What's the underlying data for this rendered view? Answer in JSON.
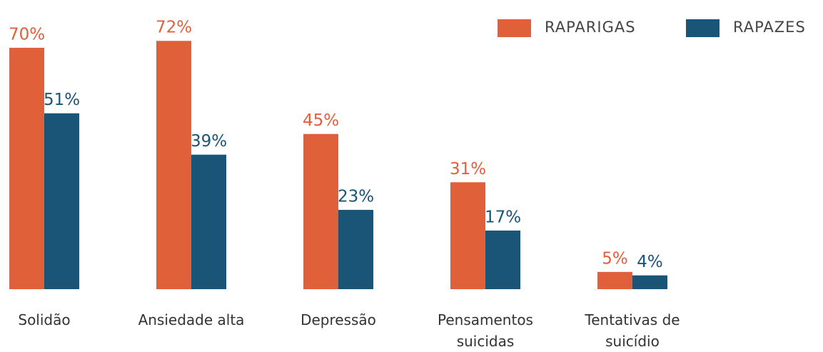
{
  "chart_data": {
    "type": "bar",
    "categories": [
      "Solidão",
      "Ansiedade alta",
      "Depressão",
      "Pensamentos suicidas",
      "Tentativas de suicídio"
    ],
    "series": [
      {
        "name": "RAPARIGAS",
        "color": "#e0603a",
        "values": [
          70,
          72,
          45,
          31,
          5
        ],
        "value_labels": [
          "70%",
          "72%",
          "45%",
          "31%",
          "5%"
        ]
      },
      {
        "name": "RAPAZES",
        "color": "#1a5476",
        "values": [
          51,
          39,
          23,
          17,
          4
        ],
        "value_labels": [
          "51%",
          "39%",
          "23%",
          "17%",
          "4%"
        ]
      }
    ],
    "legend": "top-right"
  }
}
